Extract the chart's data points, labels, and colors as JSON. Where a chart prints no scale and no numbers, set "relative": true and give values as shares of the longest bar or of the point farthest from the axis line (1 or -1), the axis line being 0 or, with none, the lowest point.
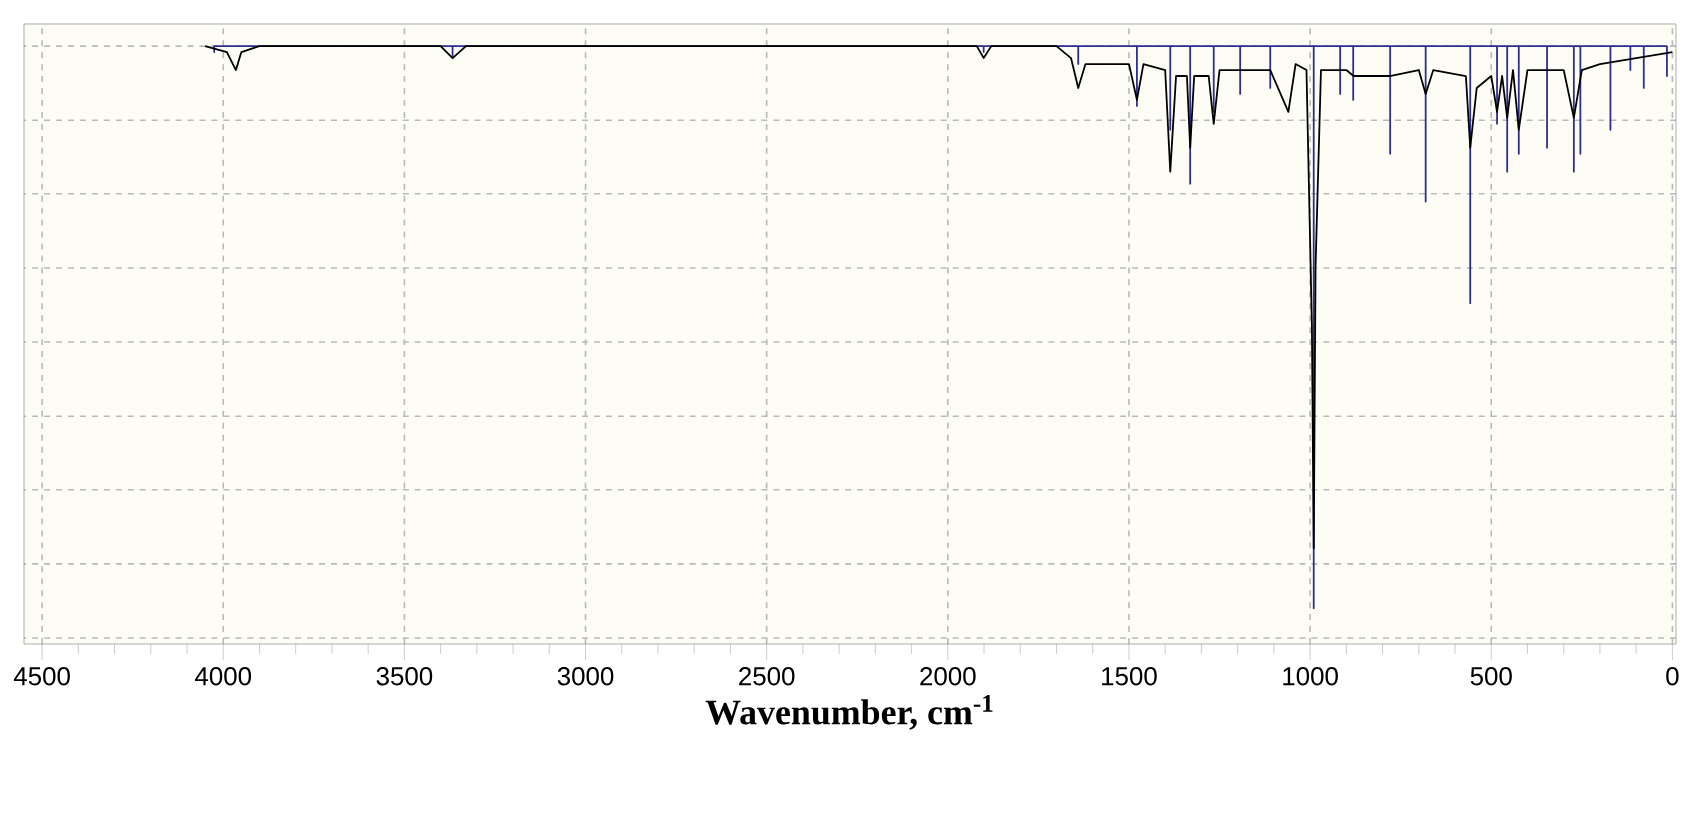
{
  "chart_data": {
    "type": "line",
    "relative": true,
    "xlabel": "Wavenumber, cm$^{-1}$",
    "xlim": [
      4550,
      -10
    ],
    "xticks": [
      4500,
      4000,
      3500,
      3000,
      2500,
      2000,
      1500,
      1000,
      500,
      0
    ],
    "grid": true,
    "marker": "none",
    "line_style": "solid",
    "series": [
      {
        "color": "#2e2e8f",
        "x": [
          4025,
          4025,
          4025,
          3367,
          3367,
          3367,
          1901,
          1901,
          1901,
          1640,
          1640,
          1640,
          1478,
          1478,
          1478,
          1386,
          1386,
          1386,
          1331,
          1331,
          1331,
          1266,
          1266,
          1266,
          1193,
          1193,
          1193,
          1110,
          1110,
          1110,
          990,
          990,
          990,
          917,
          917,
          917,
          881,
          881,
          881,
          779,
          779,
          779,
          681,
          681,
          681,
          558,
          558,
          558,
          484,
          484,
          484,
          456,
          456,
          456,
          424,
          424,
          424,
          346,
          346,
          346,
          272,
          272,
          272,
          254,
          254,
          254,
          171,
          171,
          171,
          116,
          116,
          116,
          79,
          79,
          79,
          15,
          15,
          15
        ],
        "values": [
          1,
          0.99,
          1,
          1,
          0.98,
          1,
          1,
          0.99,
          1,
          1,
          0.97,
          1,
          1,
          0.9,
          1,
          1,
          0.86,
          1,
          1,
          0.77,
          1,
          1,
          0.89,
          1,
          1,
          0.92,
          1,
          1,
          0.93,
          1,
          1,
          0.06,
          1,
          1,
          0.92,
          1,
          1,
          0.91,
          1,
          1,
          0.82,
          1,
          1,
          0.74,
          1,
          1,
          0.57,
          1,
          1,
          0.87,
          1,
          1,
          0.79,
          1,
          1,
          0.82,
          1,
          1,
          0.83,
          1,
          1,
          0.79,
          1,
          1,
          0.82,
          1,
          1,
          0.86,
          1,
          1,
          0.96,
          1,
          1,
          0.93,
          1,
          1,
          0.95,
          1
        ]
      },
      {
        "color": "#000000",
        "x": [
          4050,
          3990,
          3965,
          3950,
          3900,
          3400,
          3367,
          3330,
          1920,
          1901,
          1880,
          1700,
          1660,
          1640,
          1620,
          1500,
          1478,
          1460,
          1400,
          1386,
          1370,
          1340,
          1331,
          1320,
          1280,
          1266,
          1250,
          1150,
          1110,
          1060,
          1040,
          1010,
          995,
          990,
          985,
          970,
          900,
          880,
          780,
          700,
          681,
          660,
          570,
          558,
          540,
          500,
          484,
          470,
          456,
          440,
          424,
          400,
          300,
          272,
          250,
          200,
          0
        ],
        "values": [
          1,
          0.99,
          0.96,
          0.99,
          1,
          1,
          0.98,
          1,
          1,
          0.98,
          1,
          1,
          0.98,
          0.93,
          0.97,
          0.97,
          0.91,
          0.97,
          0.96,
          0.79,
          0.95,
          0.95,
          0.83,
          0.95,
          0.95,
          0.87,
          0.96,
          0.96,
          0.96,
          0.89,
          0.97,
          0.96,
          0.53,
          0.16,
          0.63,
          0.96,
          0.96,
          0.95,
          0.95,
          0.96,
          0.92,
          0.96,
          0.95,
          0.83,
          0.93,
          0.95,
          0.89,
          0.95,
          0.88,
          0.96,
          0.86,
          0.96,
          0.96,
          0.88,
          0.96,
          0.97,
          0.99
        ]
      }
    ]
  }
}
